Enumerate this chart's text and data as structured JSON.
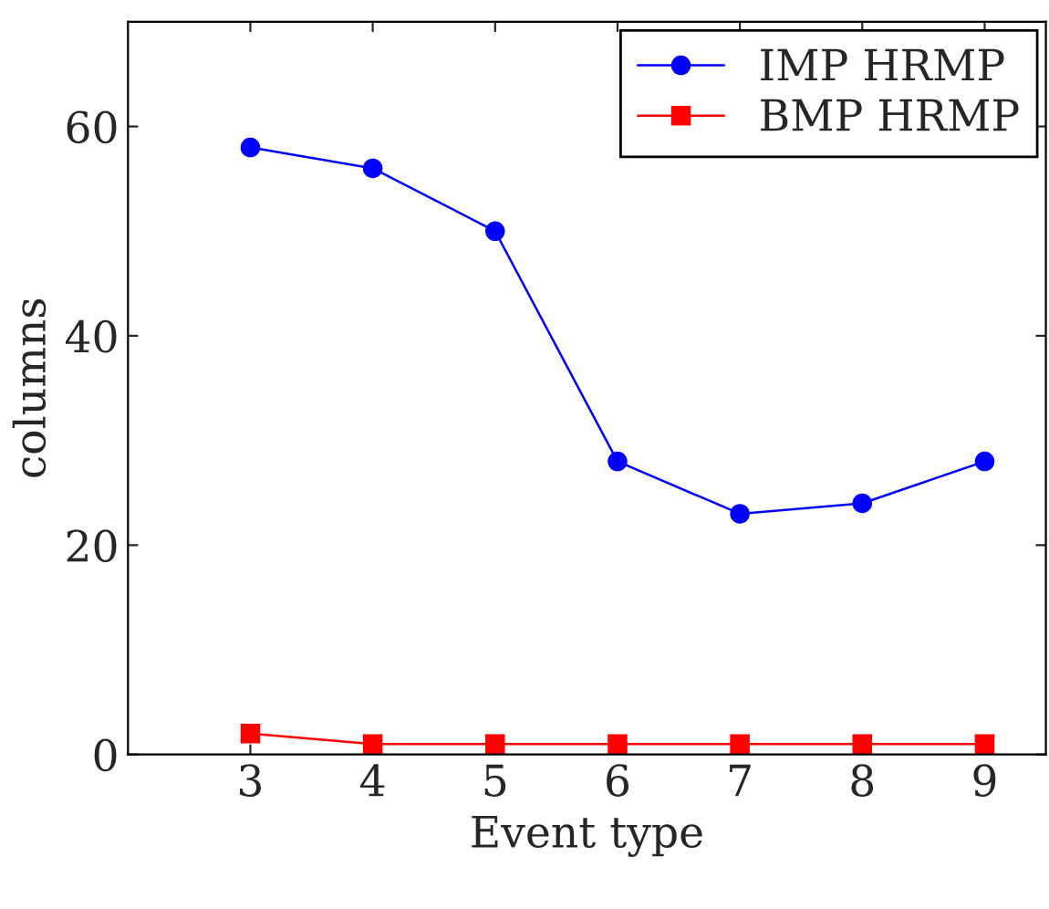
{
  "chart_data": {
    "type": "line",
    "xlabel": "Event type",
    "ylabel": "columns",
    "x": [
      3,
      4,
      5,
      6,
      7,
      8,
      9
    ],
    "series": [
      {
        "name": "IMP HRMP",
        "color": "#0000ff",
        "values": [
          58,
          56,
          50,
          28,
          23,
          24,
          28
        ],
        "marker": "circle"
      },
      {
        "name": "BMP HRMP",
        "color": "#ff0000",
        "values": [
          2,
          1,
          1,
          1,
          1,
          1,
          1
        ],
        "marker": "square"
      }
    ],
    "xlim": [
      2,
      9.5
    ],
    "xticks": [
      3,
      4,
      5,
      6,
      7,
      8,
      9
    ],
    "ylim": [
      0,
      70
    ],
    "yticks": [
      0,
      20,
      40,
      60
    ],
    "grid": false,
    "legend": "top right",
    "line_style": "solid"
  }
}
